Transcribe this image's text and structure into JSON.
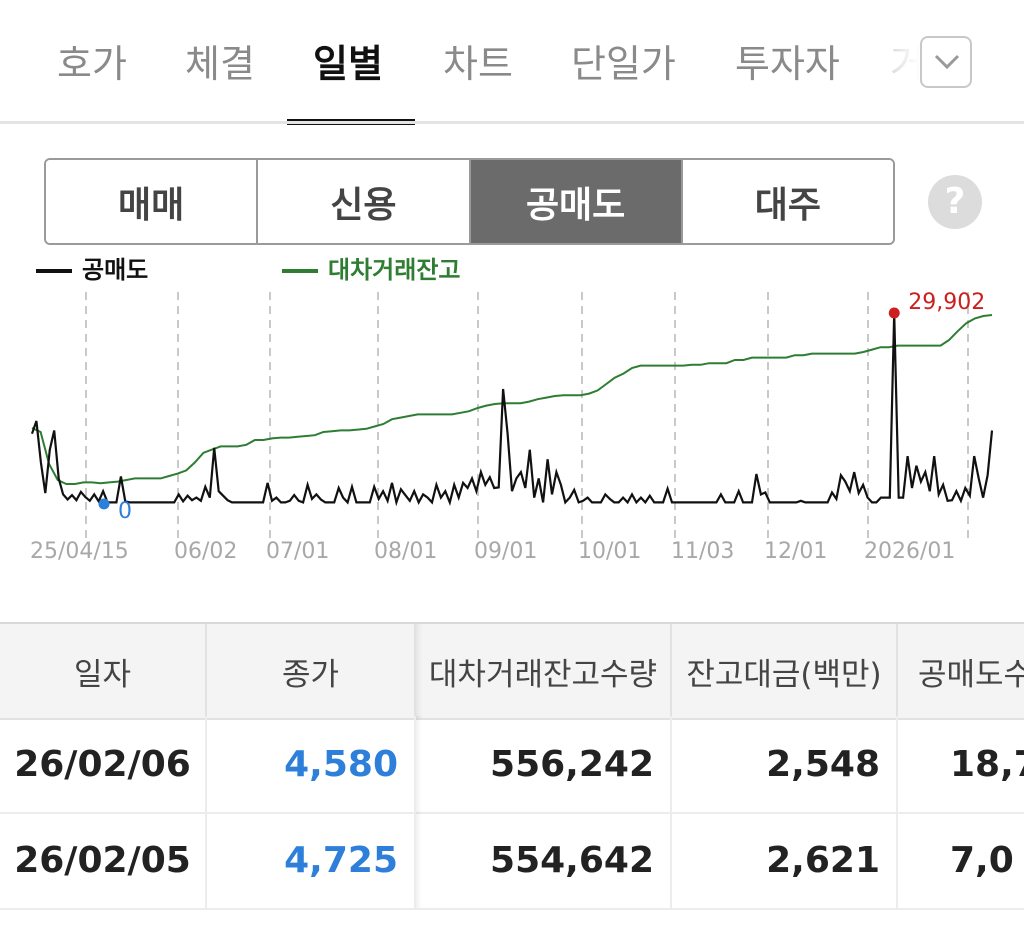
{
  "tabs": [
    {
      "label": "호가"
    },
    {
      "label": "체결"
    },
    {
      "label": "일별",
      "active": true
    },
    {
      "label": "차트"
    },
    {
      "label": "단일가"
    },
    {
      "label": "투자자"
    },
    {
      "label": "거"
    }
  ],
  "more_icon": "chevron-down-icon",
  "segments": [
    {
      "label": "매매"
    },
    {
      "label": "신용"
    },
    {
      "label": "공매도",
      "active": true
    },
    {
      "label": "대주"
    }
  ],
  "help": {
    "icon": "question-icon",
    "label": "?"
  },
  "colors": {
    "short_sell": "#111111",
    "loan_balance": "#2e7d32",
    "max_marker": "#cc1f1f",
    "min_marker": "#2e7fd9",
    "price_down": "#2e7fd9"
  },
  "chart_data": {
    "type": "line",
    "legend": [
      {
        "name": "공매도",
        "color": "#111111"
      },
      {
        "name": "대차거래잔고",
        "color": "#2e7d32"
      }
    ],
    "x_ticks": [
      "25/04/15",
      "06/02",
      "07/01",
      "08/01",
      "09/01",
      "10/01",
      "11/03",
      "12/01",
      "2026/01"
    ],
    "max_label": "29,902",
    "min_label": "0",
    "ylim": [
      0,
      29902
    ],
    "series": [
      {
        "name": "공매도",
        "values": [
          11000,
          13000,
          6500,
          1700,
          8500,
          11500,
          4000,
          1500,
          700,
          1400,
          600,
          1900,
          1100,
          500,
          1500,
          400,
          2000,
          250,
          250,
          250,
          4300,
          400,
          250,
          250,
          250,
          250,
          250,
          250,
          250,
          250,
          250,
          250,
          250,
          1500,
          400,
          1300,
          600,
          1000,
          500,
          2700,
          1000,
          8800,
          2000,
          1300,
          600,
          250,
          250,
          250,
          250,
          250,
          250,
          250,
          250,
          3300,
          500,
          1000,
          250,
          250,
          500,
          1400,
          500,
          250,
          3000,
          800,
          1500,
          700,
          250,
          250,
          250,
          2500,
          1000,
          250,
          2700,
          250,
          250,
          250,
          250,
          2700,
          800,
          2000,
          500,
          3300,
          250,
          2300,
          1400,
          500,
          2000,
          250,
          1500,
          1000,
          250,
          3000,
          1000,
          2000,
          250,
          3000,
          1000,
          3300,
          2500,
          4000,
          2000,
          5000,
          3000,
          4200,
          2500,
          2600,
          18000,
          11000,
          2000,
          4000,
          5000,
          2500,
          8500,
          1000,
          4000,
          250,
          7000,
          1500,
          5000,
          3000,
          250,
          1000,
          2200,
          250,
          500,
          1000,
          250,
          250,
          250,
          1500,
          800,
          250,
          250,
          1000,
          250,
          1500,
          250,
          1000,
          250,
          1300,
          250,
          250,
          250,
          2400,
          250,
          250,
          250,
          250,
          250,
          250,
          250,
          250,
          250,
          250,
          250,
          1500,
          250,
          250,
          250,
          2000,
          250,
          250,
          250,
          4700,
          1500,
          1800,
          250,
          250,
          250,
          250,
          250,
          250,
          250,
          500,
          250,
          250,
          250,
          250,
          250,
          250,
          1800,
          800,
          4500,
          3500,
          2000,
          5000,
          1700,
          3000,
          1000,
          250,
          250,
          1000,
          1000,
          1000,
          29902,
          1000,
          1000,
          7500,
          2500,
          6000,
          3500,
          5000,
          2000,
          7500,
          1500,
          3000,
          500,
          600,
          2000,
          500,
          2500,
          1300,
          7500,
          4000,
          1000,
          4500,
          11500
        ]
      },
      {
        "name": "대차거래잔고",
        "values": [
          415000,
          410000,
          370000,
          350000,
          345000,
          345000,
          347000,
          347000,
          346000,
          347000,
          348000,
          350000,
          352000,
          352000,
          352000,
          352000,
          355000,
          358000,
          362000,
          372000,
          384000,
          388000,
          392000,
          392000,
          392000,
          394000,
          400000,
          400000,
          402000,
          403000,
          403000,
          404000,
          405000,
          406000,
          410000,
          411000,
          412000,
          412000,
          413000,
          414000,
          417000,
          420000,
          426000,
          428000,
          430000,
          432000,
          432000,
          432000,
          432000,
          432000,
          434000,
          436000,
          440000,
          443000,
          445000,
          446000,
          446000,
          446000,
          448000,
          451000,
          453000,
          455000,
          456000,
          456000,
          456000,
          458000,
          462000,
          470000,
          478000,
          483000,
          490000,
          493000,
          493000,
          493000,
          493000,
          493000,
          493000,
          494000,
          494000,
          496000,
          496000,
          496000,
          500000,
          500000,
          503000,
          503000,
          503000,
          503000,
          503000,
          506000,
          506000,
          508000,
          508000,
          508000,
          508000,
          508000,
          508000,
          510000,
          513000,
          516000,
          516000,
          518000,
          518000,
          518000,
          518000,
          518000,
          518000,
          525000,
          536000,
          546000,
          552000,
          555000,
          556242
        ]
      }
    ]
  },
  "table": {
    "headers": [
      "일자",
      "종가",
      "대차거래잔고수량",
      "잔고대금(백만)",
      "공매도수"
    ],
    "rows": [
      {
        "date": "26/02/06",
        "price": "4,580",
        "balance_qty": "556,242",
        "balance_amt": "2,548",
        "short_qty": "18,7"
      },
      {
        "date": "26/02/05",
        "price": "4,725",
        "balance_qty": "554,642",
        "balance_amt": "2,621",
        "short_qty": "7,0"
      }
    ]
  }
}
